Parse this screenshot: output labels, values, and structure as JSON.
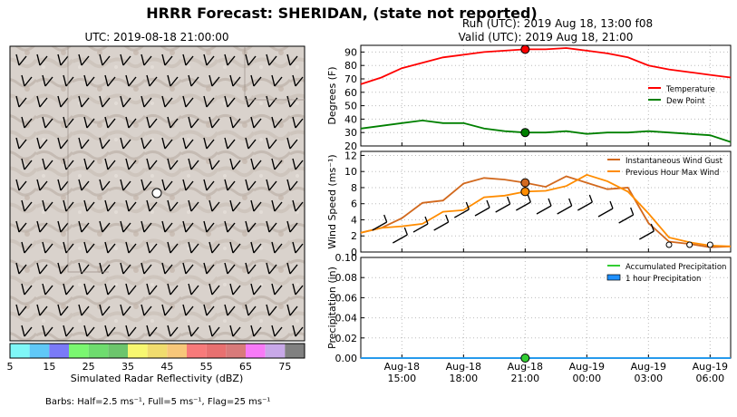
{
  "figure": {
    "title": "HRRR Forecast: SHERIDAN, (state not reported)",
    "run_label": "Run (UTC): 2019 Aug 18, 13:00 f08",
    "valid_label": "Valid (UTC): 2019 Aug 18, 21:00",
    "barbs_note": "Barbs: Half=2.5 ms⁻¹, Full=5 ms⁻¹, Flag=25 ms⁻¹"
  },
  "map": {
    "title": "UTC: 2019-08-18 21:00:00",
    "colorbar": {
      "label": "Simulated Radar Reflectivity (dBZ)",
      "ticks": [
        "5",
        "15",
        "25",
        "35",
        "45",
        "55",
        "65",
        "75"
      ],
      "colors": [
        "#7ff7f7",
        "#60c8f7",
        "#7a7af7",
        "#7af770",
        "#6edc6e",
        "#6cc56c",
        "#f7f770",
        "#f0dc6e",
        "#f7c77a",
        "#f77a7a",
        "#e87070",
        "#d87a7a",
        "#f77af7",
        "#c8a8e8",
        "#808080"
      ]
    },
    "marker": "station-location"
  },
  "colors": {
    "temperature": "#ff0000",
    "dew_point": "#008000",
    "gust": "#d2691e",
    "max_wind": "#ff8c00",
    "precip_accum": "#32cd32",
    "precip_hourly": "#1e90ff"
  },
  "chart_data": [
    {
      "type": "line",
      "ylabel": "Degrees (F)",
      "ylim": [
        20,
        95
      ],
      "yticks": [
        "20",
        "30",
        "40",
        "50",
        "60",
        "70",
        "80",
        "90"
      ],
      "x": [
        "2019-08-18 13:00",
        "2019-08-18 14:00",
        "2019-08-18 15:00",
        "2019-08-18 16:00",
        "2019-08-18 17:00",
        "2019-08-18 18:00",
        "2019-08-18 19:00",
        "2019-08-18 20:00",
        "2019-08-18 21:00",
        "2019-08-18 22:00",
        "2019-08-18 23:00",
        "2019-08-19 00:00",
        "2019-08-19 01:00",
        "2019-08-19 02:00",
        "2019-08-19 03:00",
        "2019-08-19 04:00",
        "2019-08-19 05:00",
        "2019-08-19 06:00",
        "2019-08-19 07:00"
      ],
      "series": [
        {
          "name": "Temperature",
          "color": "#ff0000",
          "values": [
            66,
            71,
            78,
            82,
            86,
            88,
            90,
            91,
            92,
            92,
            93,
            91,
            89,
            86,
            80,
            77,
            75,
            73,
            71
          ]
        },
        {
          "name": "Dew Point",
          "color": "#008000",
          "values": [
            33,
            35,
            37,
            39,
            37,
            37,
            33,
            31,
            30,
            30,
            31,
            29,
            30,
            30,
            31,
            30,
            29,
            28,
            23
          ]
        }
      ],
      "valid_marker": {
        "x": "2019-08-18 21:00",
        "values": [
          92,
          30
        ]
      },
      "legend": "right",
      "grid": true
    },
    {
      "type": "line",
      "ylabel": "Wind Speed (ms⁻¹)",
      "ylim": [
        0,
        12.5
      ],
      "yticks": [
        "0",
        "2",
        "4",
        "6",
        "8",
        "10",
        "12"
      ],
      "x": [
        "2019-08-18 13:00",
        "2019-08-18 14:00",
        "2019-08-18 15:00",
        "2019-08-18 16:00",
        "2019-08-18 17:00",
        "2019-08-18 18:00",
        "2019-08-18 19:00",
        "2019-08-18 20:00",
        "2019-08-18 21:00",
        "2019-08-18 22:00",
        "2019-08-18 23:00",
        "2019-08-19 00:00",
        "2019-08-19 01:00",
        "2019-08-19 02:00",
        "2019-08-19 03:00",
        "2019-08-19 04:00",
        "2019-08-19 05:00",
        "2019-08-19 06:00",
        "2019-08-19 07:00"
      ],
      "series": [
        {
          "name": "Instantaneous Wind Gust",
          "color": "#d2691e",
          "values": [
            2.4,
            3.0,
            4.2,
            6.1,
            6.4,
            8.5,
            9.2,
            9.0,
            8.6,
            8.1,
            9.4,
            8.6,
            7.8,
            8.0,
            3.6,
            1.3,
            1.0,
            0.6,
            0.7
          ]
        },
        {
          "name": "Previous Hour Max Wind",
          "color": "#ff8c00",
          "values": [
            2.4,
            3.0,
            3.2,
            3.5,
            5.0,
            5.2,
            6.8,
            7.0,
            7.5,
            7.6,
            8.2,
            9.6,
            8.8,
            7.5,
            4.8,
            1.8,
            1.2,
            0.8,
            0.7
          ]
        }
      ],
      "valid_marker": {
        "x": "2019-08-18 21:00",
        "values": [
          8.6,
          7.5
        ]
      },
      "legend": "top-right",
      "grid": true
    },
    {
      "type": "area",
      "ylabel": "Precipitation (in)",
      "ylim": [
        0,
        0.1
      ],
      "yticks": [
        "0.00",
        "0.02",
        "0.04",
        "0.06",
        "0.08",
        "0.10"
      ],
      "x": [
        "2019-08-18 13:00",
        "2019-08-18 14:00",
        "2019-08-18 15:00",
        "2019-08-18 16:00",
        "2019-08-18 17:00",
        "2019-08-18 18:00",
        "2019-08-18 19:00",
        "2019-08-18 20:00",
        "2019-08-18 21:00",
        "2019-08-18 22:00",
        "2019-08-18 23:00",
        "2019-08-19 00:00",
        "2019-08-19 01:00",
        "2019-08-19 02:00",
        "2019-08-19 03:00",
        "2019-08-19 04:00",
        "2019-08-19 05:00",
        "2019-08-19 06:00",
        "2019-08-19 07:00"
      ],
      "series": [
        {
          "name": "Accumulated Precipitation",
          "color": "#32cd32",
          "values": [
            0,
            0,
            0,
            0,
            0,
            0,
            0,
            0,
            0,
            0,
            0,
            0,
            0,
            0,
            0,
            0,
            0,
            0,
            0
          ]
        },
        {
          "name": "1 hour Precipitation",
          "color": "#1e90ff",
          "values": [
            0,
            0,
            0,
            0,
            0,
            0,
            0,
            0,
            0,
            0,
            0,
            0,
            0,
            0,
            0,
            0,
            0,
            0,
            0
          ]
        }
      ],
      "valid_marker": {
        "x": "2019-08-18 21:00",
        "values": [
          0
        ]
      },
      "legend": "top-right",
      "grid": true
    }
  ],
  "xaxis": {
    "ticks": [
      {
        "x": "2019-08-18 15:00",
        "line1": "Aug-18",
        "line2": "15:00"
      },
      {
        "x": "2019-08-18 18:00",
        "line1": "Aug-18",
        "line2": "18:00"
      },
      {
        "x": "2019-08-18 21:00",
        "line1": "Aug-18",
        "line2": "21:00"
      },
      {
        "x": "2019-08-19 00:00",
        "line1": "Aug-19",
        "line2": "00:00"
      },
      {
        "x": "2019-08-19 03:00",
        "line1": "Aug-19",
        "line2": "03:00"
      },
      {
        "x": "2019-08-19 06:00",
        "line1": "Aug-19",
        "line2": "06:00"
      }
    ]
  }
}
